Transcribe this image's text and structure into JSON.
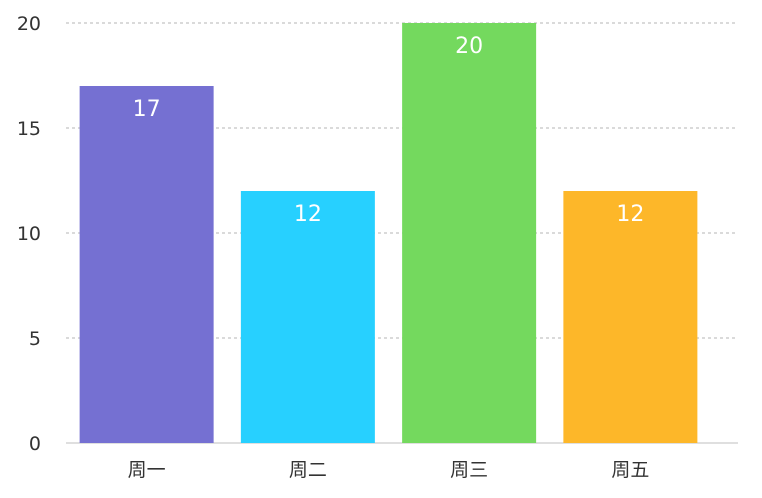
{
  "chart_data": {
    "type": "bar",
    "categories": [
      "周一",
      "周二",
      "周三",
      "周五"
    ],
    "values": [
      17,
      12,
      20,
      12
    ],
    "colors": [
      "#7570d2",
      "#27d0ff",
      "#74d95e",
      "#fdb729"
    ],
    "ylim": [
      0,
      20
    ],
    "yticks": [
      0,
      5,
      10,
      15,
      20
    ],
    "grid": true,
    "data_labels": true,
    "legend": "none"
  }
}
